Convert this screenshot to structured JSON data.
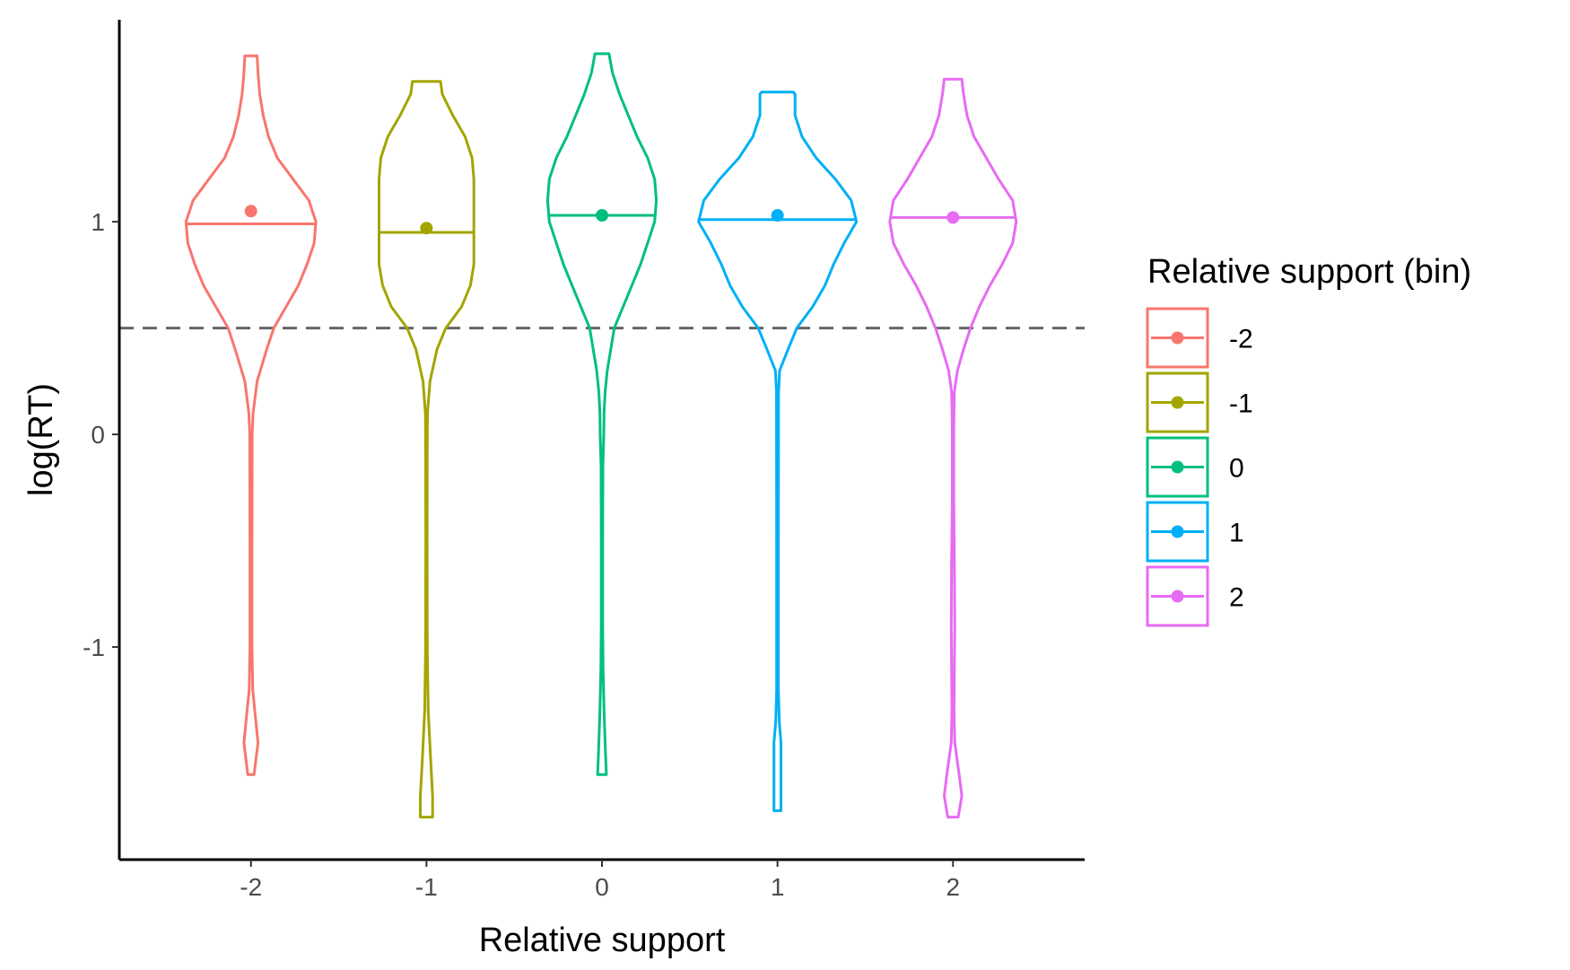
{
  "chart_data": {
    "type": "violin",
    "xlabel": "Relative support",
    "ylabel": "log(RT)",
    "categories": [
      "-2",
      "-1",
      "0",
      "1",
      "2"
    ],
    "x_values": [
      -2,
      -1,
      0,
      1,
      2
    ],
    "x_ticks": [
      "-2",
      "-1",
      "0",
      "1",
      "2"
    ],
    "y_ticks": [
      "-1",
      "0",
      "1"
    ],
    "y_tick_values": [
      -1,
      0,
      1
    ],
    "xlim": [
      -2.75,
      2.75
    ],
    "ylim": [
      -2.0,
      1.95
    ],
    "reference_line": {
      "y": 0.5,
      "style": "dashed",
      "color": "#666666"
    },
    "grid": false,
    "legend": {
      "title": "Relative support (bin)",
      "position": "right",
      "entries": [
        "-2",
        "-1",
        "0",
        "1",
        "2"
      ]
    },
    "series": [
      {
        "name": "-2",
        "color": "#F8766D",
        "median": 0.99,
        "mean": 1.05,
        "ymin": -1.6,
        "ymax": 1.78,
        "profile": [
          [
            -1.6,
            0.018
          ],
          [
            -1.45,
            0.04
          ],
          [
            -1.3,
            0.022
          ],
          [
            -1.2,
            0.01
          ],
          [
            -1.0,
            0.006
          ],
          [
            -0.5,
            0.006
          ],
          [
            0.0,
            0.007
          ],
          [
            0.1,
            0.012
          ],
          [
            0.25,
            0.035
          ],
          [
            0.4,
            0.09
          ],
          [
            0.5,
            0.13
          ],
          [
            0.6,
            0.2
          ],
          [
            0.7,
            0.27
          ],
          [
            0.8,
            0.32
          ],
          [
            0.9,
            0.36
          ],
          [
            1.0,
            0.37
          ],
          [
            1.1,
            0.33
          ],
          [
            1.2,
            0.24
          ],
          [
            1.3,
            0.15
          ],
          [
            1.4,
            0.1
          ],
          [
            1.5,
            0.07
          ],
          [
            1.6,
            0.05
          ],
          [
            1.7,
            0.04
          ],
          [
            1.78,
            0.035
          ]
        ]
      },
      {
        "name": "-1",
        "color": "#A3A500",
        "median": 0.95,
        "mean": 0.97,
        "ymin": -1.8,
        "ymax": 1.66,
        "profile": [
          [
            -1.8,
            0.035
          ],
          [
            -1.7,
            0.035
          ],
          [
            -1.55,
            0.025
          ],
          [
            -1.3,
            0.01
          ],
          [
            -1.0,
            0.005
          ],
          [
            -0.5,
            0.004
          ],
          [
            0.0,
            0.005
          ],
          [
            0.1,
            0.006
          ],
          [
            0.25,
            0.02
          ],
          [
            0.4,
            0.06
          ],
          [
            0.5,
            0.11
          ],
          [
            0.6,
            0.2
          ],
          [
            0.7,
            0.25
          ],
          [
            0.8,
            0.27
          ],
          [
            0.9,
            0.27
          ],
          [
            1.0,
            0.27
          ],
          [
            1.1,
            0.27
          ],
          [
            1.2,
            0.27
          ],
          [
            1.3,
            0.26
          ],
          [
            1.4,
            0.22
          ],
          [
            1.5,
            0.15
          ],
          [
            1.6,
            0.09
          ],
          [
            1.66,
            0.08
          ]
        ]
      },
      {
        "name": "0",
        "color": "#00BF7D",
        "median": 1.03,
        "mean": 1.03,
        "ymin": -1.6,
        "ymax": 1.79,
        "profile": [
          [
            -1.6,
            0.025
          ],
          [
            -1.5,
            0.02
          ],
          [
            -1.3,
            0.012
          ],
          [
            -1.1,
            0.006
          ],
          [
            -0.9,
            0.004
          ],
          [
            -0.5,
            0.004
          ],
          [
            -0.15,
            0.005
          ],
          [
            0.0,
            0.01
          ],
          [
            0.1,
            0.012
          ],
          [
            0.2,
            0.018
          ],
          [
            0.3,
            0.03
          ],
          [
            0.4,
            0.05
          ],
          [
            0.5,
            0.07
          ],
          [
            0.6,
            0.12
          ],
          [
            0.7,
            0.17
          ],
          [
            0.8,
            0.22
          ],
          [
            0.9,
            0.26
          ],
          [
            1.0,
            0.3
          ],
          [
            1.1,
            0.31
          ],
          [
            1.2,
            0.3
          ],
          [
            1.3,
            0.26
          ],
          [
            1.4,
            0.2
          ],
          [
            1.5,
            0.15
          ],
          [
            1.6,
            0.1
          ],
          [
            1.7,
            0.06
          ],
          [
            1.79,
            0.04
          ]
        ]
      },
      {
        "name": "1",
        "color": "#00B0F6",
        "median": 1.01,
        "mean": 1.03,
        "ymin": -1.77,
        "ymax": 1.61,
        "profile": [
          [
            -1.77,
            0.02
          ],
          [
            -1.6,
            0.02
          ],
          [
            -1.45,
            0.02
          ],
          [
            -1.35,
            0.01
          ],
          [
            -1.2,
            0.005
          ],
          [
            -0.5,
            0.005
          ],
          [
            0.2,
            0.006
          ],
          [
            0.3,
            0.012
          ],
          [
            0.4,
            0.06
          ],
          [
            0.5,
            0.11
          ],
          [
            0.6,
            0.2
          ],
          [
            0.7,
            0.27
          ],
          [
            0.8,
            0.32
          ],
          [
            0.9,
            0.38
          ],
          [
            1.0,
            0.45
          ],
          [
            1.1,
            0.42
          ],
          [
            1.2,
            0.33
          ],
          [
            1.3,
            0.22
          ],
          [
            1.4,
            0.14
          ],
          [
            1.5,
            0.1
          ],
          [
            1.6,
            0.1
          ],
          [
            1.61,
            0.09
          ]
        ]
      },
      {
        "name": "2",
        "color": "#E76BF3",
        "median": 1.02,
        "mean": 1.02,
        "ymin": -1.8,
        "ymax": 1.67,
        "profile": [
          [
            -1.8,
            0.03
          ],
          [
            -1.7,
            0.05
          ],
          [
            -1.6,
            0.035
          ],
          [
            -1.45,
            0.01
          ],
          [
            -1.3,
            0.006
          ],
          [
            -0.9,
            0.01
          ],
          [
            -0.6,
            0.008
          ],
          [
            -0.3,
            0.004
          ],
          [
            0.0,
            0.004
          ],
          [
            0.1,
            0.005
          ],
          [
            0.2,
            0.008
          ],
          [
            0.3,
            0.025
          ],
          [
            0.4,
            0.06
          ],
          [
            0.5,
            0.1
          ],
          [
            0.6,
            0.15
          ],
          [
            0.7,
            0.21
          ],
          [
            0.8,
            0.28
          ],
          [
            0.9,
            0.34
          ],
          [
            1.0,
            0.36
          ],
          [
            1.1,
            0.34
          ],
          [
            1.2,
            0.26
          ],
          [
            1.3,
            0.19
          ],
          [
            1.4,
            0.12
          ],
          [
            1.5,
            0.08
          ],
          [
            1.6,
            0.06
          ],
          [
            1.67,
            0.05
          ]
        ]
      }
    ]
  }
}
